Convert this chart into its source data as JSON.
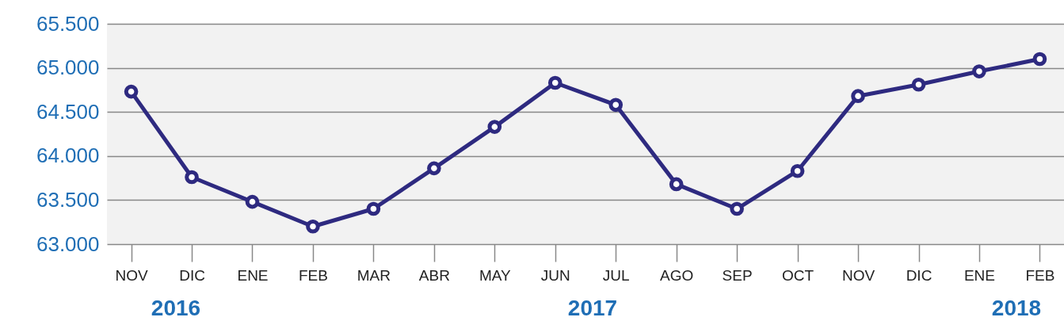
{
  "chart_data": {
    "type": "line",
    "categories": [
      "NOV",
      "DIC",
      "ENE",
      "FEB",
      "MAR",
      "ABR",
      "MAY",
      "JUN",
      "JUL",
      "AGO",
      "SEP",
      "OCT",
      "NOV",
      "DIC",
      "ENE",
      "FEB"
    ],
    "series": [
      {
        "color": "#2e2a80",
        "values": [
          64730,
          63760,
          63480,
          63200,
          63400,
          63860,
          64330,
          64830,
          64580,
          63680,
          63400,
          63830,
          64680,
          64810,
          64960,
          65100
        ]
      }
    ],
    "ylim": [
      63000,
      65500
    ],
    "yticks": [
      {
        "value": 63000,
        "label": "63.000"
      },
      {
        "value": 63500,
        "label": "63.500"
      },
      {
        "value": 64000,
        "label": "64.000"
      },
      {
        "value": 64500,
        "label": "64.500"
      },
      {
        "value": 65000,
        "label": "65.000"
      },
      {
        "value": 65500,
        "label": "65.500"
      }
    ],
    "grid": "y",
    "marker": "circle",
    "line_style": "solid",
    "annotations": [
      "2016",
      "2017",
      "2018"
    ]
  }
}
